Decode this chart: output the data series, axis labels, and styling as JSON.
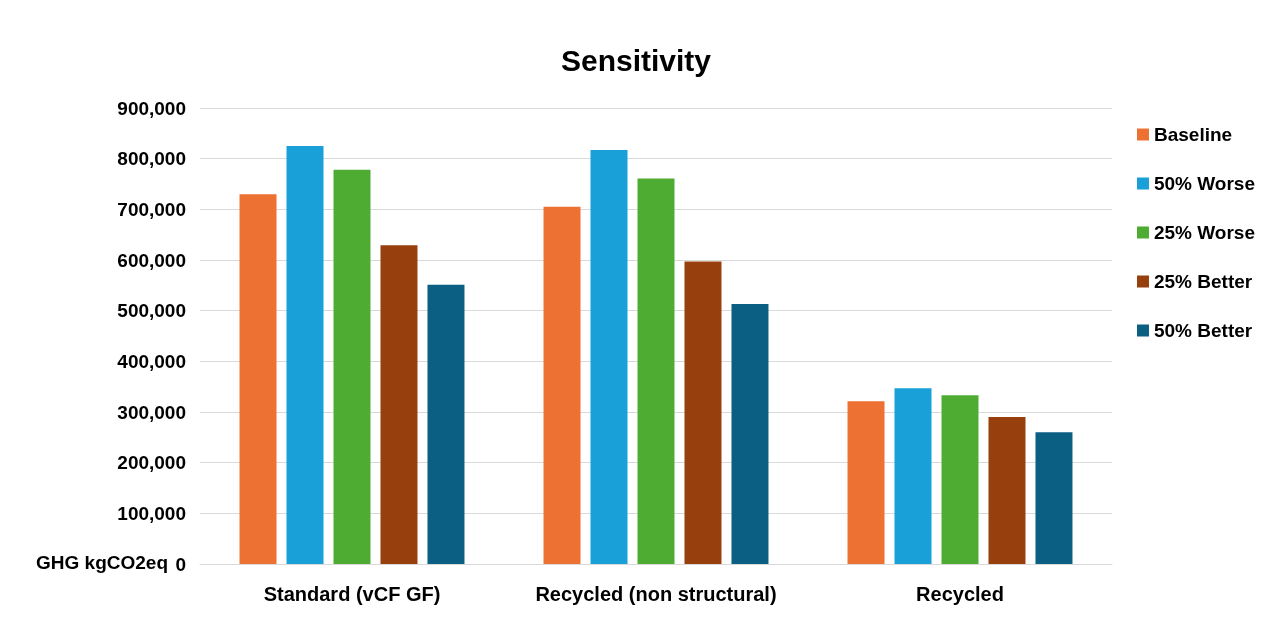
{
  "chart_data": {
    "type": "bar",
    "title": "Sensitivity",
    "ylabel": "GHG kgCO2eq",
    "categories": [
      "Standard (vCF GF)",
      "Recycled (non structural)",
      "Recycled"
    ],
    "series": [
      {
        "name": "Baseline",
        "color": "#ed7132",
        "values": [
          730000,
          705000,
          321000
        ]
      },
      {
        "name": "50% Worse",
        "color": "#1aa0d8",
        "values": [
          825000,
          817000,
          347000
        ]
      },
      {
        "name": "25% Worse",
        "color": "#4eac33",
        "values": [
          778000,
          761000,
          333000
        ]
      },
      {
        "name": "25% Better",
        "color": "#983f0e",
        "values": [
          629000,
          597000,
          290000
        ]
      },
      {
        "name": "50% Better",
        "color": "#0b5f82",
        "values": [
          551000,
          513000,
          260000
        ]
      }
    ],
    "ylim": [
      0,
      900000
    ],
    "yticks": [
      0,
      {
        "value": 100000,
        "label": "100,000"
      },
      {
        "value": 200000,
        "label": "200,000"
      },
      {
        "value": 300000,
        "label": "300,000"
      },
      {
        "value": 400000,
        "label": "400,000"
      },
      {
        "value": 500000,
        "label": "500,000"
      },
      {
        "value": 600000,
        "label": "600,000"
      },
      {
        "value": 700000,
        "label": "700,000"
      },
      {
        "value": 800000,
        "label": "800,000"
      },
      {
        "value": 900000,
        "label": "900,000"
      }
    ],
    "grid": "y",
    "legend": "right"
  }
}
